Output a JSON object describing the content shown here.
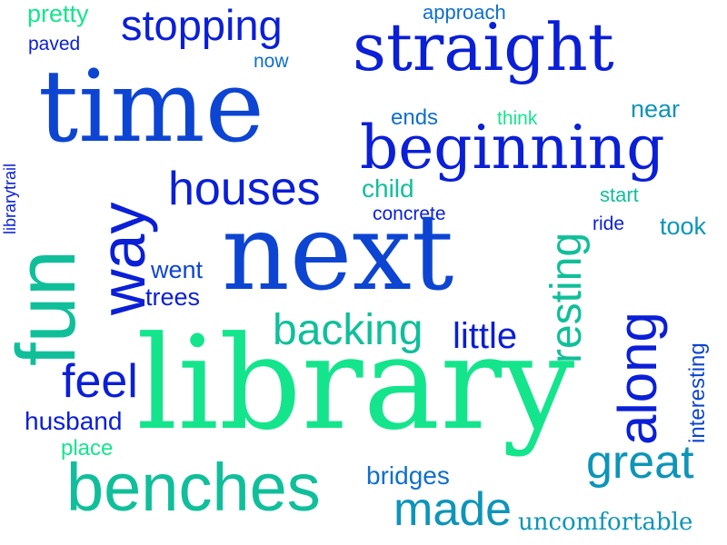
{
  "colors": {
    "background": "#ffffff",
    "palette": [
      "#0a1fd6",
      "#0d45d2",
      "#0f6fcc",
      "#0d95b8",
      "#10bf9a",
      "#14e58c"
    ]
  },
  "words": {
    "pretty": "pretty",
    "paved": "paved",
    "stopping": "stopping",
    "approach": "approach",
    "now": "now",
    "straight": "straight",
    "time": "time",
    "ends": "ends",
    "think": "think",
    "near": "near",
    "beginning": "beginning",
    "librarytrail": "librarytrail",
    "houses": "houses",
    "child": "child",
    "way": "way",
    "concrete": "concrete",
    "start": "start",
    "fun": "fun",
    "ride": "ride",
    "took": "took",
    "next": "next",
    "went": "went",
    "trees": "trees",
    "resting": "resting",
    "along": "along",
    "backing": "backing",
    "little": "little",
    "feel": "feel",
    "library": "library",
    "husband": "husband",
    "interesting": "interesting",
    "place": "place",
    "great": "great",
    "bridges": "bridges",
    "benches": "benches",
    "made": "made",
    "uncomfortable": "uncomfortable"
  }
}
